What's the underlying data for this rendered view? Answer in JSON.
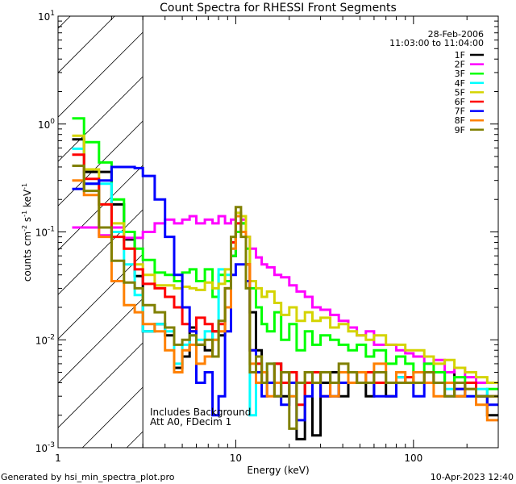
{
  "chart_data": {
    "type": "line",
    "title": "Count Spectra for RHESSI Front Segments",
    "xlabel": "Energy (keV)",
    "ylabel": {
      "base": "counts cm",
      "e1": "-2",
      "mid1": " s",
      "e2": "-1",
      "mid2": " keV",
      "e3": "-1"
    },
    "xscale": "log",
    "yscale": "log",
    "xlim": [
      1,
      300
    ],
    "ylim": [
      0.001,
      10
    ],
    "grid": false,
    "legend_placement": "top-right",
    "x_ticks": [
      {
        "value": 1,
        "label": "1"
      },
      {
        "value": 10,
        "label": "10"
      },
      {
        "value": 100,
        "label": "100"
      }
    ],
    "y_ticks": [
      {
        "value": 10,
        "base": "10",
        "exp": "1"
      },
      {
        "value": 1,
        "base": "10",
        "exp": "0"
      },
      {
        "value": 0.1,
        "base": "10",
        "exp": "-1"
      },
      {
        "value": 0.01,
        "base": "10",
        "exp": "-2"
      },
      {
        "value": 0.001,
        "base": "10",
        "exp": "-3"
      }
    ],
    "shaded_region_keV": [
      1,
      3
    ],
    "date": "28-Feb-2006",
    "time_range": "11:03:00 to 11:04:00",
    "annotations": [
      "Includes Background",
      "Att A0, FDecim 1"
    ],
    "energy_bin_edges_keV": [
      1.2,
      1.4,
      1.7,
      2.0,
      2.35,
      2.7,
      3.0,
      3.5,
      4.0,
      4.5,
      5.0,
      5.5,
      6.0,
      6.7,
      7.4,
      8.0,
      8.7,
      9.4,
      10.0,
      10.7,
      11.4,
      12.0,
      13,
      14,
      15,
      16.5,
      18,
      20,
      22,
      24.5,
      27,
      30,
      34,
      38,
      43,
      48,
      54,
      60,
      70,
      80,
      90,
      100,
      115,
      130,
      150,
      170,
      195,
      225,
      260,
      300
    ],
    "series": [
      {
        "name": "1F",
        "color": "#000000",
        "values": [
          0.72,
          0.36,
          0.36,
          0.18,
          0.085,
          0.039,
          0.012,
          0.014,
          0.011,
          0.0055,
          0.007,
          0.013,
          0.009,
          0.008,
          0.012,
          0.011,
          0.02,
          0.06,
          0.1,
          0.12,
          0.05,
          0.018,
          0.008,
          0.005,
          0.004,
          0.006,
          0.003,
          0.005,
          0.0012,
          0.004,
          0.0013,
          0.004,
          0.005,
          0.003,
          0.004,
          0.004,
          0.003,
          0.004,
          0.003,
          0.0045,
          0.004,
          0.004,
          0.005,
          0.004,
          0.005,
          0.003,
          0.004,
          0.003,
          0.002
        ]
      },
      {
        "name": "2F",
        "color": "#ff00ff",
        "values": [
          0.11,
          0.11,
          0.093,
          0.11,
          0.088,
          0.088,
          0.1,
          0.12,
          0.13,
          0.12,
          0.13,
          0.14,
          0.12,
          0.13,
          0.12,
          0.14,
          0.12,
          0.13,
          0.15,
          0.13,
          0.09,
          0.07,
          0.058,
          0.05,
          0.047,
          0.04,
          0.038,
          0.032,
          0.028,
          0.025,
          0.02,
          0.019,
          0.017,
          0.015,
          0.013,
          0.011,
          0.012,
          0.009,
          0.009,
          0.008,
          0.0075,
          0.007,
          0.006,
          0.0065,
          0.005,
          0.0055,
          0.0045,
          0.004,
          0.004
        ]
      },
      {
        "name": "3F",
        "color": "#00ff00",
        "values": [
          1.13,
          0.68,
          0.44,
          0.2,
          0.1,
          0.07,
          0.055,
          0.042,
          0.04,
          0.035,
          0.042,
          0.045,
          0.035,
          0.045,
          0.025,
          0.04,
          0.035,
          0.06,
          0.1,
          0.12,
          0.07,
          0.03,
          0.02,
          0.014,
          0.012,
          0.018,
          0.01,
          0.014,
          0.008,
          0.012,
          0.009,
          0.011,
          0.01,
          0.009,
          0.008,
          0.009,
          0.007,
          0.008,
          0.006,
          0.007,
          0.006,
          0.005,
          0.006,
          0.005,
          0.004,
          0.0045,
          0.004,
          0.003,
          0.0035
        ]
      },
      {
        "name": "4F",
        "color": "#00ffff",
        "values": [
          0.59,
          0.28,
          0.28,
          0.1,
          0.05,
          0.026,
          0.012,
          0.014,
          0.012,
          0.006,
          0.009,
          0.011,
          0.01,
          0.012,
          0.01,
          0.045,
          0.04,
          0.07,
          0.12,
          0.1,
          0.03,
          0.002,
          0.006,
          0.005,
          0.006,
          0.004,
          0.005,
          0.003,
          0.004,
          0.005,
          0.004,
          0.005,
          0.004,
          0.005,
          0.004,
          0.005,
          0.004,
          0.005,
          0.004,
          0.0045,
          0.004,
          0.005,
          0.004,
          0.004,
          0.0035,
          0.004,
          0.003,
          0.0035,
          0.003
        ]
      },
      {
        "name": "5F",
        "color": "#d4d400",
        "values": [
          0.78,
          0.38,
          0.18,
          0.12,
          0.07,
          0.05,
          0.04,
          0.032,
          0.032,
          0.03,
          0.031,
          0.03,
          0.029,
          0.034,
          0.03,
          0.033,
          0.045,
          0.08,
          0.15,
          0.14,
          0.09,
          0.035,
          0.03,
          0.025,
          0.028,
          0.022,
          0.017,
          0.02,
          0.015,
          0.018,
          0.015,
          0.016,
          0.013,
          0.014,
          0.012,
          0.011,
          0.01,
          0.011,
          0.009,
          0.009,
          0.008,
          0.008,
          0.007,
          0.006,
          0.0065,
          0.0055,
          0.005,
          0.0045,
          0.004
        ]
      },
      {
        "name": "6F",
        "color": "#ff0000",
        "values": [
          0.52,
          0.31,
          0.18,
          0.09,
          0.07,
          0.045,
          0.033,
          0.03,
          0.025,
          0.02,
          0.014,
          0.012,
          0.016,
          0.014,
          0.012,
          0.014,
          0.03,
          0.08,
          0.12,
          0.1,
          0.05,
          0.008,
          0.006,
          0.005,
          0.004,
          0.006,
          0.004,
          0.005,
          0.0025,
          0.004,
          0.005,
          0.003,
          0.004,
          0.004,
          0.005,
          0.004,
          0.005,
          0.004,
          0.004,
          0.004,
          0.0045,
          0.004,
          0.005,
          0.004,
          0.004,
          0.0035,
          0.004,
          0.003,
          0.003
        ]
      },
      {
        "name": "7F",
        "color": "#0000ff",
        "values": [
          0.25,
          0.28,
          0.3,
          0.4,
          0.4,
          0.39,
          0.33,
          0.2,
          0.09,
          0.04,
          0.02,
          0.012,
          0.004,
          0.005,
          0.002,
          0.003,
          0.012,
          0.04,
          0.05,
          0.05,
          0.035,
          0.008,
          0.005,
          0.003,
          0.004,
          0.003,
          0.0025,
          0.004,
          0.0018,
          0.003,
          0.004,
          0.003,
          0.003,
          0.004,
          0.005,
          0.004,
          0.004,
          0.003,
          0.003,
          0.004,
          0.004,
          0.003,
          0.004,
          0.004,
          0.003,
          0.0035,
          0.003,
          0.003,
          0.0025
        ]
      },
      {
        "name": "8F",
        "color": "#ff8000",
        "values": [
          0.3,
          0.22,
          0.09,
          0.035,
          0.021,
          0.018,
          0.014,
          0.012,
          0.008,
          0.005,
          0.008,
          0.009,
          0.006,
          0.007,
          0.01,
          0.012,
          0.02,
          0.07,
          0.14,
          0.1,
          0.05,
          0.006,
          0.004,
          0.005,
          0.003,
          0.004,
          0.005,
          0.003,
          0.004,
          0.005,
          0.004,
          0.005,
          0.003,
          0.005,
          0.004,
          0.005,
          0.004,
          0.006,
          0.004,
          0.005,
          0.004,
          0.005,
          0.004,
          0.003,
          0.004,
          0.003,
          0.0035,
          0.0025,
          0.0018
        ]
      },
      {
        "name": "9F",
        "color": "#808000",
        "values": [
          0.41,
          0.24,
          0.11,
          0.054,
          0.034,
          0.03,
          0.021,
          0.018,
          0.013,
          0.009,
          0.01,
          0.011,
          0.009,
          0.01,
          0.007,
          0.015,
          0.03,
          0.09,
          0.17,
          0.09,
          0.03,
          0.005,
          0.007,
          0.004,
          0.006,
          0.003,
          0.005,
          0.0015,
          0.004,
          0.005,
          0.004,
          0.005,
          0.004,
          0.006,
          0.005,
          0.004,
          0.004,
          0.005,
          0.004,
          0.004,
          0.004,
          0.004,
          0.005,
          0.004,
          0.003,
          0.004,
          0.0035,
          0.003,
          0.003
        ]
      }
    ]
  },
  "footer": {
    "generated_by": "Generated by hsi_min_spectra_plot.pro",
    "timestamp": "10-Apr-2023 12:40"
  }
}
